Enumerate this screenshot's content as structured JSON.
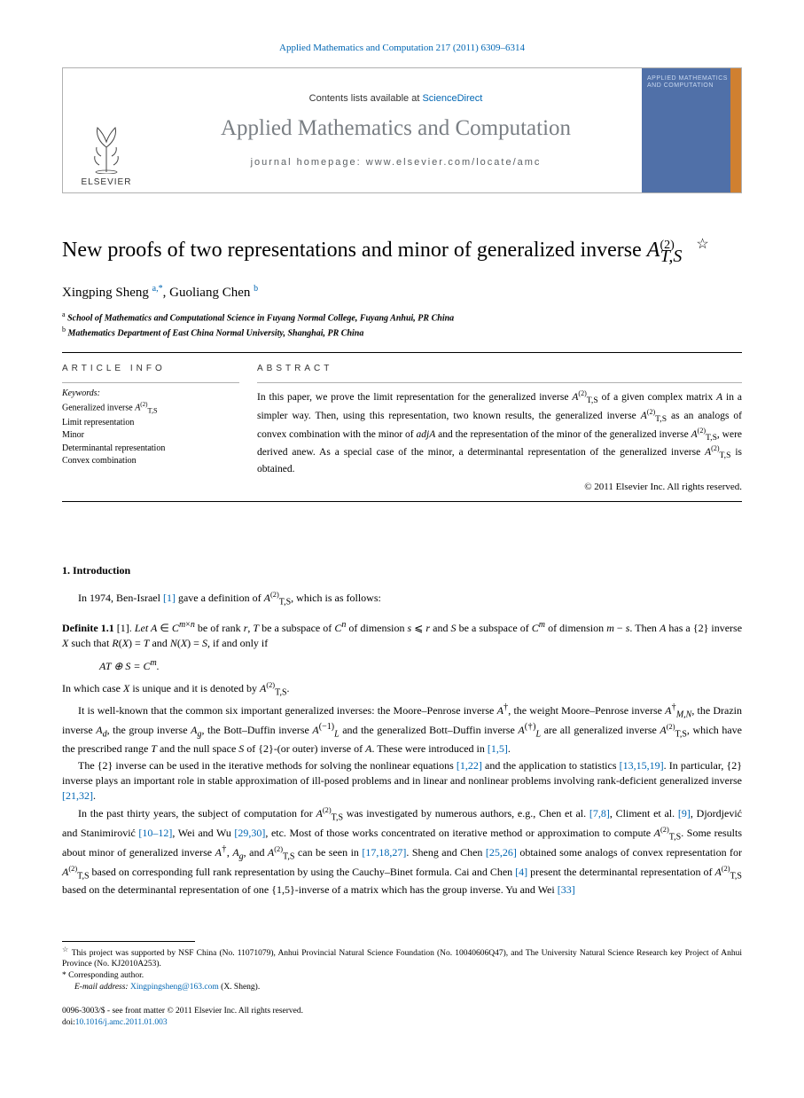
{
  "running_head": "Applied Mathematics and Computation 217 (2011) 6309–6314",
  "masthead": {
    "publisher": "ELSEVIER",
    "contents_prefix": "Contents lists available at ",
    "contents_link": "ScienceDirect",
    "journal": "Applied Mathematics and Computation",
    "homepage_label": "journal homepage: www.elsevier.com/locate/amc",
    "cover_text": "APPLIED\nMATHEMATICS\nAND\nCOMPUTATION"
  },
  "title_html": "New proofs of two representations and minor of generalized inverse <i>A</i><sup>(2)</sup><sub style='position:relative;left:-16px;'><i>T,S</i></sub><span class='star'>☆</span>",
  "authors_html": "Xingping Sheng <sup><a href='#'>a</a>,<a href='#'>*</a></sup>, Guoliang Chen <sup><a href='#'>b</a></sup>",
  "affiliations": {
    "a": "School of Mathematics and Computational Science in Fuyang Normal College, Fuyang Anhui, PR China",
    "b": "Mathematics Department of East China Normal University, Shanghai, PR China"
  },
  "info_label": "article info",
  "abstract_label": "abstract",
  "keywords_head": "Keywords:",
  "keywords_html": "Generalized inverse <i>A</i><sup class='ats'>(2)</sup><sub class='ats'>T,S</sub><br>Limit representation<br>Minor<br>Determinantal representation<br>Convex combination",
  "abstract_html": "In this paper, we prove the limit representation for the generalized inverse <i>A</i><sup class='ats'>(2)</sup><sub class='ats'>T,S</sub> of a given complex matrix <i>A</i> in a simpler way. Then, using this representation, two known results, the generalized inverse <i>A</i><sup class='ats'>(2)</sup><sub class='ats'>T,S</sub> as an analogs of convex combination with the minor of <i>adjA</i> and the representation of the minor of the generalized inverse <i>A</i><sup class='ats'>(2)</sup><sub class='ats'>T,S</sub>, were derived anew. As a special case of the minor, a determinantal representation of the generalized inverse <i>A</i><sup class='ats'>(2)</sup><sub class='ats'>T,S</sub> is obtained.",
  "copyright": "© 2011 Elsevier Inc. All rights reserved.",
  "section1_head": "1. Introduction",
  "p1_html": "In 1974, Ben-Israel <a href='#'>[1]</a> gave a definition of <i>A</i><sup class='ats'>(2)</sup><sub class='ats'>T,S</sub>, which is as follows:",
  "def_html": "<span class='label'>Definite 1.1</span> [1]. <i>Let A</i> ∈ <i>C</i><sup><i>m</i>×<i>n</i></sup> be of rank <i>r</i>, <i>T</i> be a subspace of <i>C</i><sup><i>n</i></sup> of dimension <i>s</i> ⩽ <i>r</i> and <i>S</i> be a subspace of <i>C</i><sup><i>m</i></sup> of dimension <i>m</i> − <i>s</i>. Then <i>A</i> has a {2} inverse <i>X</i> such that <i>R</i>(<i>X</i>) = <i>T</i> and <i>N</i>(<i>X</i>) = <i>S</i>, if and only if",
  "display_math_html": "AT ⊕ S = C<sup>m</sup>.",
  "p2_html": "In which case <i>X</i> is unique and it is denoted by <i>A</i><sup class='ats'>(2)</sup><sub class='ats'>T,S</sub>.",
  "p3_html": "It is well-known that the common six important generalized inverses: the Moore–Penrose inverse <i>A</i><sup>†</sup>, the weight Moore–Penrose inverse <i>A</i><sup>†</sup><sub><i>M,N</i></sub>, the Drazin inverse <i>A</i><sub><i>d</i></sub>, the group inverse <i>A</i><sub><i>g</i></sub>, the Bott–Duffin inverse <i>A</i><sup>(−1)</sup><sub><i>L</i></sub> and the generalized Bott–Duffin inverse <i>A</i><sup>(†)</sup><sub><i>L</i></sub> are all generalized inverse <i>A</i><sup class='ats'>(2)</sup><sub class='ats'>T,S</sub>, which have the prescribed range <i>T</i> and the null space <i>S</i> of {2}-(or outer) inverse of <i>A</i>. These were introduced in <a href='#'>[1,5]</a>.",
  "p4_html": "The {2} inverse can be used in the iterative methods for solving the nonlinear equations <a href='#'>[1,22]</a> and the application to statistics <a href='#'>[13,15,19]</a>. In particular, {2} inverse plays an important role in stable approximation of ill-posed problems and in linear and nonlinear problems involving rank-deficient generalized inverse <a href='#'>[21,32]</a>.",
  "p5_html": "In the past thirty years, the subject of computation for <i>A</i><sup class='ats'>(2)</sup><sub class='ats'>T,S</sub> was investigated by numerous authors, e.g., Chen et al. <a href='#'>[7,8]</a>, Climent et al. <a href='#'>[9]</a>, Djordjević and Stanimirović <a href='#'>[10–12]</a>, Wei and Wu <a href='#'>[29,30]</a>, etc. Most of those works concentrated on iterative method or approximation to compute <i>A</i><sup class='ats'>(2)</sup><sub class='ats'>T,S</sub>. Some results about minor of generalized inverse <i>A</i><sup>†</sup>, <i>A</i><sub><i>g</i></sub>, and <i>A</i><sup class='ats'>(2)</sup><sub class='ats'>T,S</sub> can be seen in <a href='#'>[17,18,27]</a>. Sheng and Chen <a href='#'>[25,26]</a> obtained some analogs of convex representation for <i>A</i><sup class='ats'>(2)</sup><sub class='ats'>T,S</sub> based on corresponding full rank representation by using the Cauchy–Binet formula. Cai and Chen <a href='#'>[4]</a> present the determinantal representation of <i>A</i><sup class='ats'>(2)</sup><sub class='ats'>T,S</sub> based on the determinantal representation of one {1,5}-inverse of a matrix which has the group inverse. Yu and Wei <a href='#'>[33]</a>",
  "footnotes": {
    "funding_html": "<sup>☆</sup> This project was supported by NSF China (No. 11071079), Anhui Provincial Natural Science Foundation (No. 10040606Q47), and The University Natural Science Research key Project of Anhui Province (No. KJ2010A253).",
    "corr_label": "* Corresponding author.",
    "email_label": "E-mail address:",
    "email_link": "Xingpingsheng@163.com",
    "email_tail": " (X. Sheng)."
  },
  "footer": {
    "line1": "0096-3003/$ - see front matter © 2011 Elsevier Inc. All rights reserved.",
    "doi_label": "doi:",
    "doi_link": "10.1016/j.amc.2011.01.003"
  },
  "colors": {
    "link": "#0066b3",
    "journal_gray": "#7a7f84",
    "cover_bg": "#5070a8",
    "cover_stripe": "#d08030",
    "border": "#b0b0b0"
  }
}
